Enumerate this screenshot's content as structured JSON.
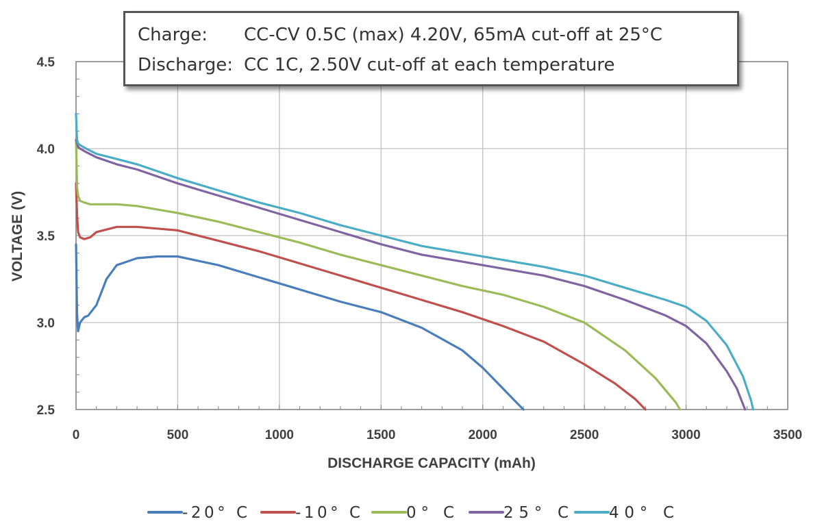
{
  "chart_data": {
    "type": "line",
    "xlabel": "DISCHARGE CAPACITY (mAh)",
    "ylabel": "VOLTAGE (V)",
    "xlim": [
      0,
      3500
    ],
    "ylim": [
      2.5,
      4.5
    ],
    "x_ticks": [
      0,
      500,
      1000,
      1500,
      2000,
      2500,
      3000,
      3500
    ],
    "x_tick_labels": [
      "0",
      "500",
      "1000",
      "1500",
      "2000",
      "2500",
      "3000",
      "3500"
    ],
    "y_ticks": [
      2.5,
      3.0,
      3.5,
      4.0,
      4.5
    ],
    "y_tick_labels": [
      "2.5",
      "3.0",
      "3.5",
      "4.0",
      "4.5"
    ],
    "grid": true,
    "legend_position": "bottom",
    "series": [
      {
        "name": "-20° C",
        "color": "#4a7ebb",
        "x": [
          0,
          5,
          10,
          20,
          40,
          60,
          80,
          100,
          150,
          200,
          300,
          400,
          500,
          700,
          900,
          1100,
          1300,
          1500,
          1700,
          1900,
          2000,
          2100,
          2150,
          2200
        ],
        "y": [
          3.45,
          3.05,
          2.95,
          3.0,
          3.03,
          3.04,
          3.07,
          3.1,
          3.25,
          3.33,
          3.37,
          3.38,
          3.38,
          3.33,
          3.26,
          3.19,
          3.12,
          3.06,
          2.97,
          2.84,
          2.74,
          2.62,
          2.56,
          2.5
        ]
      },
      {
        "name": "-10° C",
        "color": "#c0504d",
        "x": [
          0,
          5,
          10,
          20,
          40,
          70,
          100,
          200,
          300,
          400,
          500,
          700,
          900,
          1100,
          1300,
          1500,
          1700,
          1900,
          2100,
          2300,
          2500,
          2650,
          2750,
          2800
        ],
        "y": [
          3.8,
          3.62,
          3.52,
          3.49,
          3.48,
          3.49,
          3.52,
          3.55,
          3.55,
          3.54,
          3.53,
          3.47,
          3.41,
          3.34,
          3.27,
          3.2,
          3.13,
          3.06,
          2.98,
          2.89,
          2.76,
          2.65,
          2.56,
          2.5
        ]
      },
      {
        "name": "0° C",
        "color": "#9bbb59",
        "x": [
          0,
          5,
          10,
          20,
          40,
          70,
          100,
          200,
          300,
          400,
          500,
          700,
          900,
          1100,
          1300,
          1500,
          1700,
          1900,
          2100,
          2300,
          2500,
          2700,
          2850,
          2950,
          2970
        ],
        "y": [
          4.05,
          3.78,
          3.73,
          3.7,
          3.69,
          3.68,
          3.68,
          3.68,
          3.67,
          3.65,
          3.63,
          3.58,
          3.52,
          3.46,
          3.39,
          3.33,
          3.27,
          3.21,
          3.16,
          3.09,
          3.0,
          2.84,
          2.68,
          2.54,
          2.5
        ]
      },
      {
        "name": "25° C",
        "color": "#8064a2",
        "x": [
          0,
          5,
          10,
          20,
          50,
          100,
          200,
          300,
          400,
          500,
          700,
          900,
          1100,
          1300,
          1500,
          1700,
          1900,
          2100,
          2300,
          2500,
          2700,
          2900,
          3000,
          3100,
          3200,
          3250,
          3270,
          3290
        ],
        "y": [
          4.05,
          4.03,
          4.01,
          4.0,
          3.98,
          3.95,
          3.91,
          3.88,
          3.84,
          3.8,
          3.73,
          3.66,
          3.59,
          3.52,
          3.45,
          3.39,
          3.35,
          3.31,
          3.27,
          3.21,
          3.13,
          3.04,
          2.98,
          2.88,
          2.72,
          2.62,
          2.56,
          2.5
        ]
      },
      {
        "name": "40° C",
        "color": "#4bacc6",
        "x": [
          0,
          3,
          5,
          10,
          20,
          50,
          100,
          200,
          300,
          400,
          500,
          700,
          900,
          1100,
          1300,
          1500,
          1700,
          1900,
          2100,
          2300,
          2500,
          2700,
          2900,
          3000,
          3100,
          3200,
          3280,
          3320,
          3330
        ],
        "y": [
          4.2,
          4.1,
          4.05,
          4.03,
          4.02,
          4.0,
          3.97,
          3.94,
          3.91,
          3.87,
          3.83,
          3.76,
          3.69,
          3.63,
          3.56,
          3.5,
          3.44,
          3.4,
          3.36,
          3.32,
          3.27,
          3.2,
          3.13,
          3.09,
          3.01,
          2.87,
          2.69,
          2.55,
          2.5
        ]
      }
    ]
  },
  "annotation": {
    "charge_label": "Charge:",
    "charge_text": "CC-CV 0.5C (max) 4.20V, 65mA cut-off at 25°C",
    "discharge_label": "Discharge:",
    "discharge_text": "CC 1C, 2.50V cut-off at each temperature"
  }
}
